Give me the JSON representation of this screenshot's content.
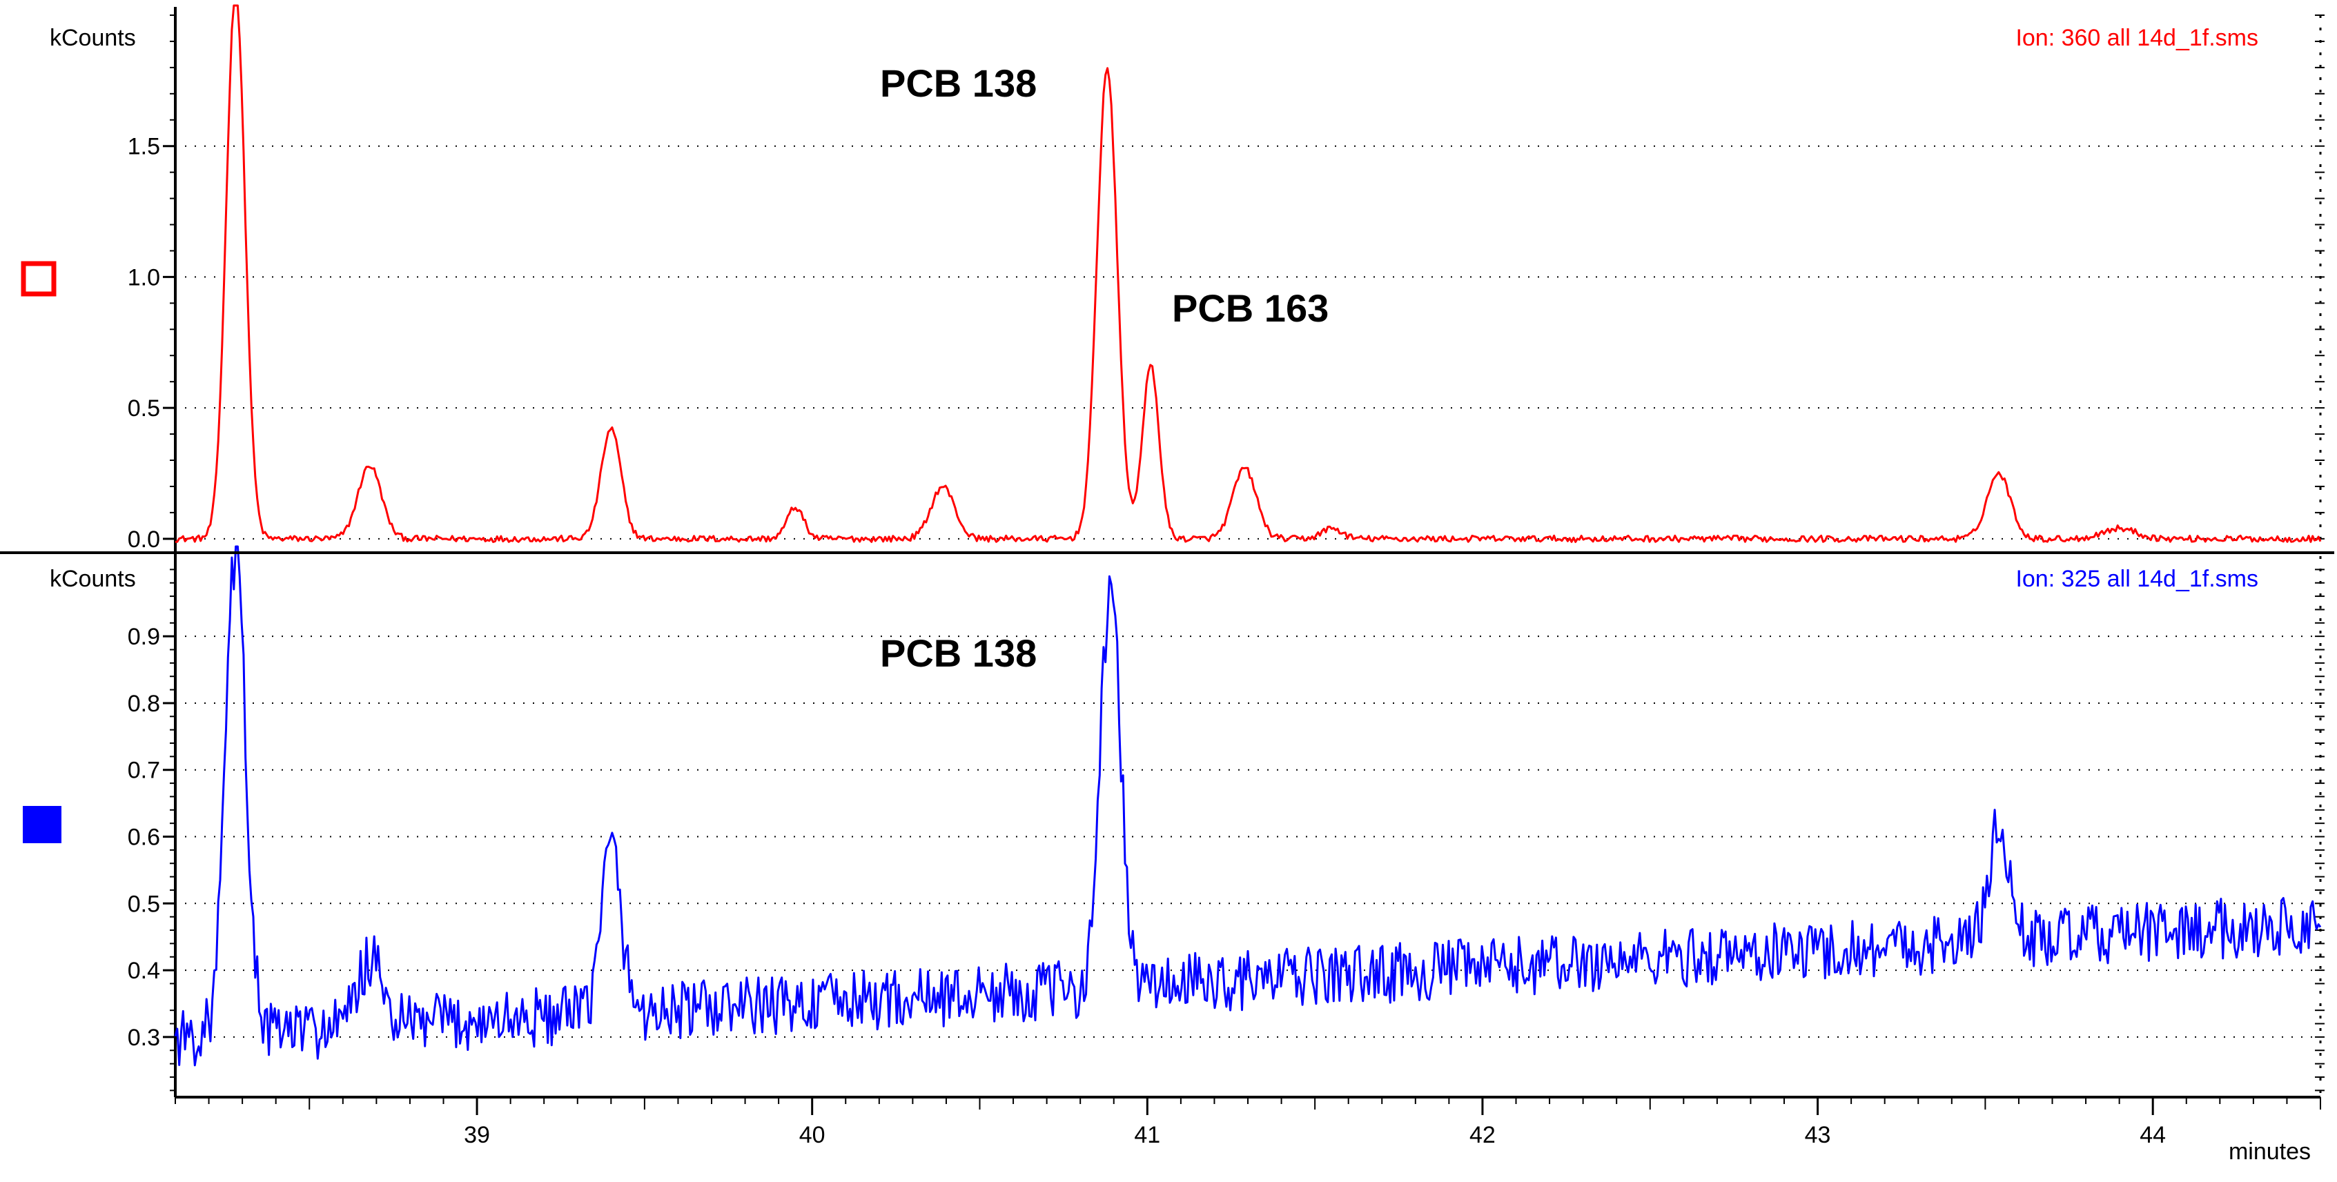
{
  "x_unit": "minutes",
  "y_unit": "kCounts",
  "colors": {
    "top": "#ff0000",
    "bottom": "#0000ff",
    "axis": "#000000"
  },
  "chart_data": [
    {
      "type": "line",
      "ion_label": "Ion: 360 all 14d_1f.sms",
      "legend_marker": "open-square",
      "ylabel": "kCounts",
      "xlim": [
        38.1,
        44.5
      ],
      "ylim": [
        -0.04,
        2.0
      ],
      "yticks": [
        "0.0",
        "0.5",
        "1.0",
        "1.5"
      ],
      "yticks_values": [
        0.0,
        0.5,
        1.0,
        1.5
      ],
      "annotations": [
        {
          "text": "PCB 138",
          "x": 40.5,
          "y": 1.75
        },
        {
          "text": "PCB 163",
          "x": 41.35,
          "y": 0.8
        }
      ],
      "peaks": [
        {
          "x": 38.28,
          "h": 2.1,
          "w": 0.028
        },
        {
          "x": 38.68,
          "h": 0.28,
          "w": 0.035
        },
        {
          "x": 39.4,
          "h": 0.42,
          "w": 0.03
        },
        {
          "x": 39.95,
          "h": 0.12,
          "w": 0.025
        },
        {
          "x": 40.39,
          "h": 0.2,
          "w": 0.035
        },
        {
          "x": 40.88,
          "h": 1.8,
          "w": 0.03
        },
        {
          "x": 41.01,
          "h": 0.66,
          "w": 0.025
        },
        {
          "x": 41.29,
          "h": 0.27,
          "w": 0.035
        },
        {
          "x": 41.55,
          "h": 0.04,
          "w": 0.03
        },
        {
          "x": 43.54,
          "h": 0.25,
          "w": 0.035
        },
        {
          "x": 43.9,
          "h": 0.04,
          "w": 0.05
        }
      ],
      "baseline": {
        "start": 0.0,
        "end": 0.0
      },
      "noise": 0.012
    },
    {
      "type": "line",
      "ion_label": "Ion: 325 all 14d_1f.sms",
      "legend_marker": "filled-square",
      "ylabel": "kCounts",
      "xlim": [
        38.1,
        44.5
      ],
      "ylim": [
        0.21,
        1.02
      ],
      "yticks": [
        "0.3",
        "0.4",
        "0.5",
        "0.6",
        "0.7",
        "0.8",
        "0.9"
      ],
      "yticks_values": [
        0.3,
        0.4,
        0.5,
        0.6,
        0.7,
        0.8,
        0.9
      ],
      "annotations": [
        {
          "text": "PCB 138",
          "x": 40.5,
          "y": 0.94
        }
      ],
      "peaks": [
        {
          "x": 38.28,
          "h": 0.72,
          "w": 0.03
        },
        {
          "x": 38.68,
          "h": 0.1,
          "w": 0.035
        },
        {
          "x": 39.4,
          "h": 0.25,
          "w": 0.03
        },
        {
          "x": 40.89,
          "h": 0.6,
          "w": 0.03
        },
        {
          "x": 43.54,
          "h": 0.17,
          "w": 0.03
        }
      ],
      "baseline": {
        "start": 0.3,
        "end": 0.47
      },
      "noise": 0.045
    }
  ],
  "x_axis": {
    "ticks": [
      "39",
      "40",
      "41",
      "42",
      "43",
      "44"
    ],
    "tick_values": [
      39,
      40,
      41,
      42,
      43,
      44
    ],
    "label": "minutes"
  }
}
